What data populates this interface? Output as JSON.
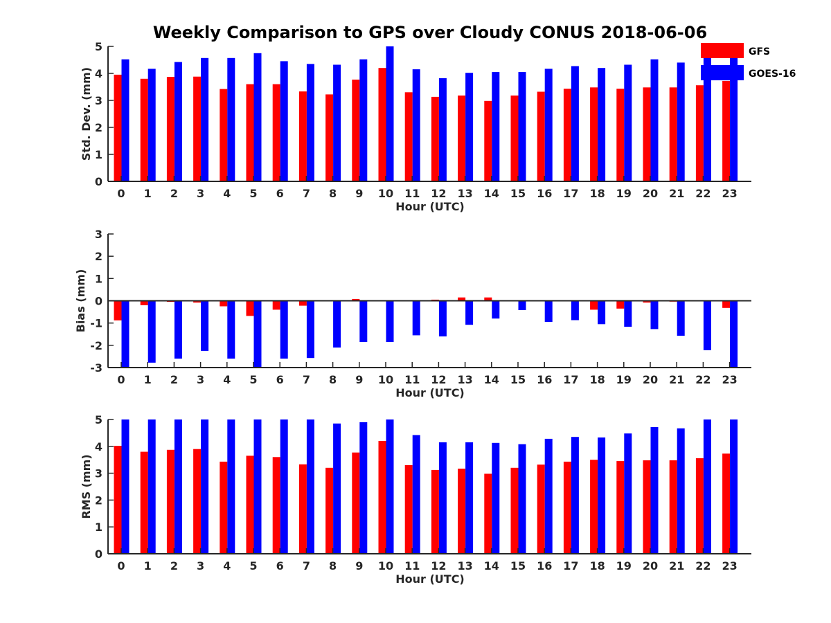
{
  "title": "Weekly Comparison to GPS over Cloudy CONUS 2018-06-06",
  "colors": {
    "GFS": "#ff0000",
    "GOES-16": "#0000ff",
    "axis": "#262626"
  },
  "legend": {
    "placement": "top-right",
    "entries": [
      "GFS",
      "GOES-16"
    ]
  },
  "chart_data": [
    {
      "type": "bar",
      "xlabel": "Hour (UTC)",
      "ylabel": "Std. Dev. (mm)",
      "ylim": [
        0,
        5
      ],
      "yticks": [
        "0",
        "1",
        "2",
        "3",
        "4",
        "5"
      ],
      "categories": [
        "0",
        "1",
        "2",
        "3",
        "4",
        "5",
        "6",
        "7",
        "8",
        "9",
        "10",
        "11",
        "12",
        "13",
        "14",
        "15",
        "16",
        "17",
        "18",
        "19",
        "20",
        "21",
        "22",
        "23"
      ],
      "series": [
        {
          "name": "GFS",
          "values": [
            3.95,
            3.8,
            3.87,
            3.88,
            3.42,
            3.6,
            3.6,
            3.33,
            3.22,
            3.77,
            4.2,
            3.3,
            3.13,
            3.18,
            2.98,
            3.18,
            3.32,
            3.43,
            3.48,
            3.43,
            3.48,
            3.48,
            3.56,
            3.72
          ]
        },
        {
          "name": "GOES-16",
          "values": [
            4.52,
            4.17,
            4.42,
            4.57,
            4.57,
            4.75,
            4.45,
            4.35,
            4.32,
            4.52,
            5.0,
            4.15,
            3.82,
            4.02,
            4.05,
            4.05,
            4.17,
            4.27,
            4.2,
            4.32,
            4.52,
            4.4,
            4.6,
            4.6
          ]
        }
      ]
    },
    {
      "type": "bar",
      "xlabel": "Hour (UTC)",
      "ylabel": "Bias (mm)",
      "ylim": [
        -3,
        3
      ],
      "yticks": [
        "-3",
        "-2",
        "-1",
        "0",
        "1",
        "2",
        "3"
      ],
      "categories": [
        "0",
        "1",
        "2",
        "3",
        "4",
        "5",
        "6",
        "7",
        "8",
        "9",
        "10",
        "11",
        "12",
        "13",
        "14",
        "15",
        "16",
        "17",
        "18",
        "19",
        "20",
        "21",
        "22",
        "23"
      ],
      "series": [
        {
          "name": "GFS",
          "values": [
            -0.88,
            -0.2,
            -0.05,
            -0.08,
            -0.25,
            -0.68,
            -0.4,
            -0.22,
            0.0,
            0.08,
            0.03,
            0.02,
            0.05,
            0.15,
            0.15,
            -0.02,
            0.0,
            0.0,
            -0.4,
            -0.35,
            -0.08,
            -0.04,
            0.0,
            -0.32
          ]
        },
        {
          "name": "GOES-16",
          "values": [
            -3.0,
            -2.78,
            -2.6,
            -2.25,
            -2.6,
            -3.0,
            -2.6,
            -2.57,
            -2.1,
            -1.85,
            -1.85,
            -1.55,
            -1.6,
            -1.08,
            -0.8,
            -0.42,
            -0.95,
            -0.87,
            -1.05,
            -1.17,
            -1.27,
            -1.57,
            -2.22,
            -3.0
          ]
        }
      ]
    },
    {
      "type": "bar",
      "xlabel": "Hour (UTC)",
      "ylabel": "RMS (mm)",
      "ylim": [
        0,
        5
      ],
      "yticks": [
        "0",
        "1",
        "2",
        "3",
        "4",
        "5"
      ],
      "categories": [
        "0",
        "1",
        "2",
        "3",
        "4",
        "5",
        "6",
        "7",
        "8",
        "9",
        "10",
        "11",
        "12",
        "13",
        "14",
        "15",
        "16",
        "17",
        "18",
        "19",
        "20",
        "21",
        "22",
        "23"
      ],
      "series": [
        {
          "name": "GFS",
          "values": [
            4.02,
            3.8,
            3.87,
            3.9,
            3.43,
            3.65,
            3.6,
            3.33,
            3.2,
            3.77,
            4.2,
            3.3,
            3.12,
            3.17,
            2.98,
            3.2,
            3.32,
            3.43,
            3.5,
            3.45,
            3.48,
            3.48,
            3.56,
            3.73
          ]
        },
        {
          "name": "GOES-16",
          "values": [
            5.0,
            5.0,
            5.0,
            5.0,
            5.0,
            5.0,
            5.0,
            5.0,
            4.85,
            4.9,
            5.0,
            4.42,
            4.15,
            4.15,
            4.13,
            4.08,
            4.28,
            4.35,
            4.33,
            4.48,
            4.72,
            4.67,
            5.0,
            5.0
          ]
        }
      ]
    }
  ]
}
